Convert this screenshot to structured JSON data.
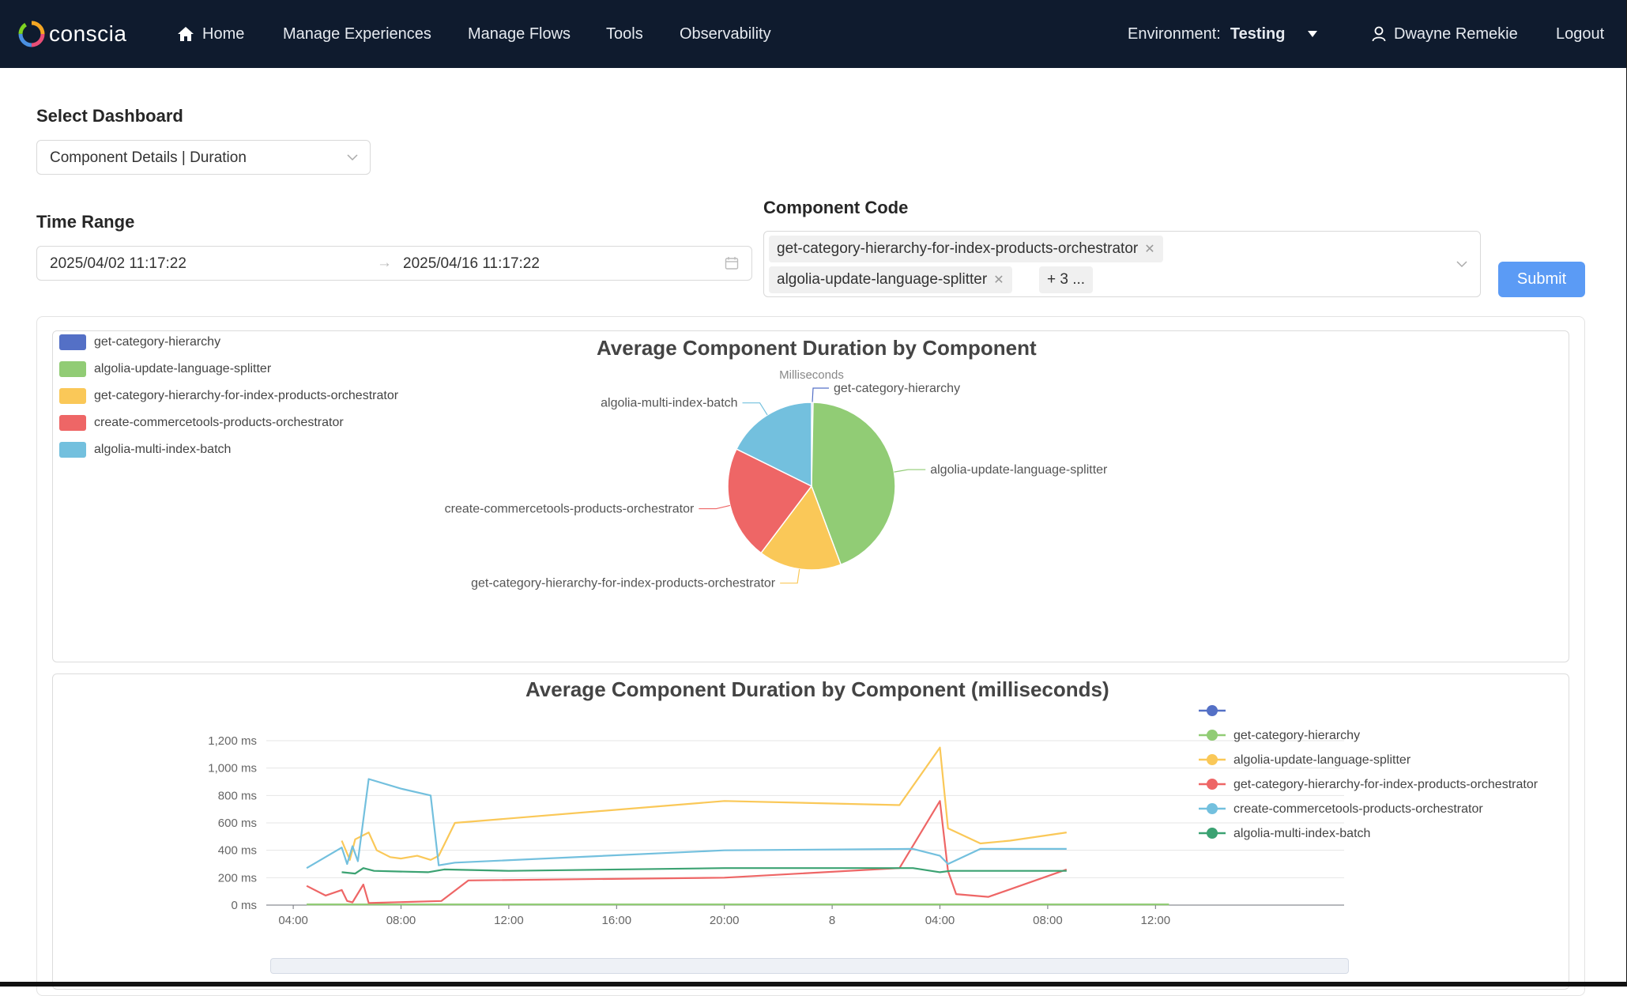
{
  "header": {
    "logo_text": "conscia",
    "nav": [
      {
        "label": "Home",
        "icon": "home-icon"
      },
      {
        "label": "Manage Experiences"
      },
      {
        "label": "Manage Flows"
      },
      {
        "label": "Tools"
      },
      {
        "label": "Observability"
      }
    ],
    "environment_label": "Environment:",
    "environment_value": "Testing",
    "user_name": "Dwayne Remekie",
    "logout_label": "Logout"
  },
  "filters": {
    "dashboard_label": "Select Dashboard",
    "dashboard_value": "Component Details | Duration",
    "time_range_label": "Time Range",
    "time_start": "2025/04/02 11:17:22",
    "time_separator": "→",
    "time_end": "2025/04/16 11:17:22",
    "component_code_label": "Component Code",
    "component_tags": [
      "get-category-hierarchy-for-index-products-orchestrator",
      "algolia-update-language-splitter"
    ],
    "more_tags": "+ 3 ...",
    "submit_label": "Submit"
  },
  "colors": {
    "blue": "#5470c6",
    "green": "#91cc75",
    "yellow": "#fac858",
    "red": "#ee6666",
    "lightblue": "#73c0de",
    "teal": "#3ba272",
    "primary_button": "#5b9bf5",
    "header_bg": "#0f1b2e"
  },
  "chart_data": [
    {
      "type": "pie",
      "title": "Average Component Duration by Component",
      "subtitle": "Milliseconds",
      "legend_position": "top-left",
      "slices": [
        {
          "name": "get-category-hierarchy",
          "value": 0.3,
          "color": "#5470c6"
        },
        {
          "name": "algolia-update-language-splitter",
          "value": 44,
          "color": "#91cc75"
        },
        {
          "name": "get-category-hierarchy-for-index-products-orchestrator",
          "value": 16,
          "color": "#fac858"
        },
        {
          "name": "create-commercetools-products-orchestrator",
          "value": 22,
          "color": "#ee6666"
        },
        {
          "name": "algolia-multi-index-batch",
          "value": 17.7,
          "color": "#73c0de"
        }
      ]
    },
    {
      "type": "line",
      "title": "Average Component Duration by Component (milliseconds)",
      "legend_position": "top-right",
      "legend_entries": [
        {
          "name": "",
          "color": "#5470c6"
        },
        {
          "name": "get-category-hierarchy",
          "color": "#91cc75"
        },
        {
          "name": "algolia-update-language-splitter",
          "color": "#fac858"
        },
        {
          "name": "get-category-hierarchy-for-index-products-orchestrator",
          "color": "#ee6666"
        },
        {
          "name": "create-commercetools-products-orchestrator",
          "color": "#73c0de"
        },
        {
          "name": "algolia-multi-index-batch",
          "color": "#3ba272"
        }
      ],
      "x_ticks": [
        "04:00",
        "08:00",
        "12:00",
        "16:00",
        "20:00",
        "8",
        "04:00",
        "08:00",
        "12:00"
      ],
      "xlim": [
        3,
        43
      ],
      "y_ticks": [
        "0 ms",
        "200 ms",
        "400 ms",
        "600 ms",
        "800 ms",
        "1,000 ms",
        "1,200 ms"
      ],
      "ylim": [
        0,
        1200
      ],
      "grid": true,
      "series": [
        {
          "color": "#91cc75",
          "x": [
            4.5,
            8,
            12,
            20,
            28,
            32,
            36.5
          ],
          "y": [
            5,
            5,
            5,
            5,
            5,
            5,
            5
          ]
        },
        {
          "color": "#fac858",
          "x": [
            5.8,
            6.1,
            6.3,
            6.8,
            7.1,
            7.6,
            8,
            8.6,
            9.1,
            9.4,
            10,
            20,
            26.5,
            28,
            28.3,
            29.5,
            30.6,
            32.7
          ],
          "y": [
            470,
            330,
            480,
            530,
            400,
            350,
            340,
            360,
            330,
            360,
            600,
            760,
            730,
            1150,
            560,
            450,
            470,
            530
          ]
        },
        {
          "color": "#ee6666",
          "x": [
            4.5,
            5.2,
            5.8,
            6,
            6.2,
            6.6,
            6.8,
            9.5,
            10.5,
            20,
            26.5,
            28,
            28.3,
            28.6,
            29.8,
            32.7
          ],
          "y": [
            140,
            70,
            110,
            30,
            20,
            150,
            15,
            30,
            180,
            200,
            270,
            760,
            250,
            80,
            60,
            260
          ]
        },
        {
          "color": "#73c0de",
          "x": [
            4.5,
            5.8,
            6,
            6.2,
            6.4,
            6.8,
            8,
            9.1,
            9.4,
            10,
            20,
            27,
            28,
            28.3,
            29.5,
            32.7
          ],
          "y": [
            270,
            420,
            300,
            430,
            320,
            920,
            850,
            800,
            290,
            310,
            400,
            410,
            360,
            300,
            410,
            410
          ]
        },
        {
          "color": "#3ba272",
          "x": [
            5.8,
            6.3,
            6.6,
            7,
            9,
            9.6,
            12,
            20,
            27,
            28,
            28.4,
            32.7
          ],
          "y": [
            240,
            230,
            270,
            250,
            240,
            260,
            250,
            270,
            270,
            240,
            250,
            250
          ]
        }
      ]
    }
  ]
}
